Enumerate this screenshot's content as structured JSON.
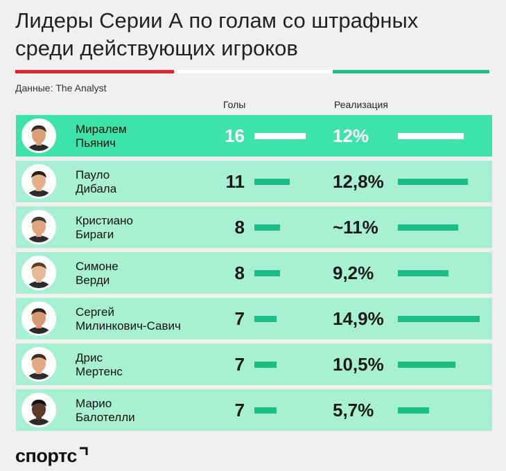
{
  "title_line1": "Лидеры Серии А по голам со штрафных",
  "title_line2": "среди действующих игроков",
  "source": "Данные: The Analyst",
  "columns": {
    "goals": "Голы",
    "realization": "Реализация"
  },
  "logo": "спортс",
  "colors": {
    "accent_green": "#1bbd86",
    "leader_row": "#3de3a8",
    "row": "#a8f0d4",
    "stripe_red": "#e0242a",
    "stripe_green": "#1fbf8a"
  },
  "chart_data": {
    "type": "table",
    "rows": [
      {
        "first": "Миралем",
        "last": "Пьянич",
        "goals": 16,
        "goals_label": "16",
        "realization": 12,
        "realization_label": "12%",
        "highlight": true
      },
      {
        "first": "Пауло",
        "last": "Дибала",
        "goals": 11,
        "goals_label": "11",
        "realization": 12.8,
        "realization_label": "12,8%"
      },
      {
        "first": "Кристиано",
        "last": "Бираги",
        "goals": 8,
        "goals_label": "8",
        "realization": 11,
        "realization_label": "~11%"
      },
      {
        "first": "Симоне",
        "last": "Верди",
        "goals": 8,
        "goals_label": "8",
        "realization": 9.2,
        "realization_label": "9,2%"
      },
      {
        "first": "Сергей",
        "last": "Милинкович-Савич",
        "goals": 7,
        "goals_label": "7",
        "realization": 14.9,
        "realization_label": "14,9%"
      },
      {
        "first": "Дрис",
        "last": "Мертенс",
        "goals": 7,
        "goals_label": "7",
        "realization": 10.5,
        "realization_label": "10,5%"
      },
      {
        "first": "Марио",
        "last": "Балотелли",
        "goals": 7,
        "goals_label": "7",
        "realization": 5.7,
        "realization_label": "5,7%"
      }
    ]
  }
}
